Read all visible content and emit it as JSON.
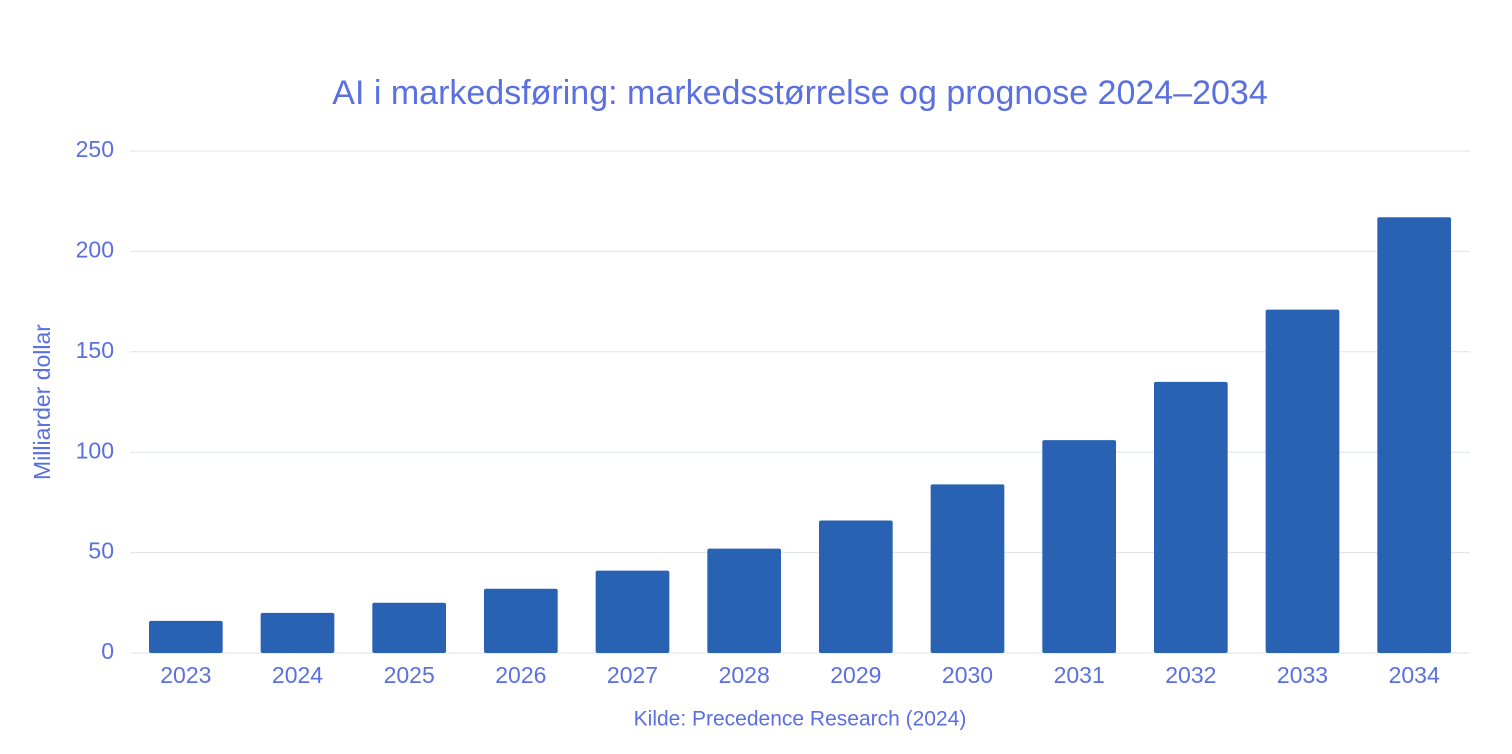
{
  "chart_data": {
    "type": "bar",
    "title": "AI i markedsføring: markedsstørrelse og prognose 2024–2034",
    "y_axis_label": "Milliarder dollar",
    "source": "Kilde: Precedence Research (2024)",
    "categories": [
      "2023",
      "2024",
      "2025",
      "2026",
      "2027",
      "2028",
      "2029",
      "2030",
      "2031",
      "2032",
      "2033",
      "2034"
    ],
    "values": [
      16,
      20,
      25,
      32,
      41,
      52,
      66,
      84,
      106,
      135,
      171,
      217
    ],
    "color": "#2a62b3",
    "ylim": [
      0,
      250
    ],
    "yticks": [
      0,
      50,
      100,
      150,
      200,
      250
    ],
    "grid": true
  }
}
